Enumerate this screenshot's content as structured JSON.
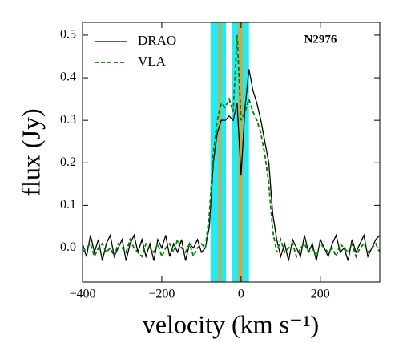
{
  "chart_data": {
    "type": "line",
    "xlabel": "velocity (km s⁻¹)",
    "ylabel": "flux (Jy)",
    "annotation": "N2976",
    "x": [
      -400,
      -390,
      -380,
      -370,
      -360,
      -350,
      -340,
      -330,
      -320,
      -310,
      -300,
      -290,
      -280,
      -270,
      -260,
      -250,
      -240,
      -230,
      -220,
      -210,
      -200,
      -190,
      -180,
      -170,
      -160,
      -150,
      -140,
      -130,
      -120,
      -110,
      -100,
      -90,
      -80,
      -70,
      -60,
      -50,
      -40,
      -30,
      -20,
      -10,
      0,
      10,
      20,
      30,
      40,
      50,
      60,
      70,
      80,
      90,
      100,
      110,
      120,
      130,
      140,
      150,
      160,
      170,
      180,
      190,
      200,
      210,
      220,
      230,
      240,
      250,
      260,
      270,
      280,
      290,
      300,
      310,
      320,
      330,
      340,
      350
    ],
    "series": [
      {
        "name": "DRAO",
        "color": "#000000",
        "dash": "solid",
        "values": [
          0.01,
          -0.02,
          0.03,
          -0.01,
          0.02,
          -0.03,
          0.01,
          0.03,
          -0.02,
          0.0,
          0.02,
          -0.03,
          0.01,
          0.03,
          -0.01,
          0.02,
          -0.02,
          0.01,
          -0.03,
          0.02,
          0.0,
          0.03,
          -0.02,
          0.01,
          -0.01,
          0.02,
          -0.03,
          0.01,
          0.0,
          0.02,
          -0.01,
          0.0,
          0.05,
          0.2,
          0.27,
          0.3,
          0.3,
          0.31,
          0.3,
          0.34,
          0.17,
          0.33,
          0.42,
          0.37,
          0.34,
          0.3,
          0.25,
          0.2,
          0.08,
          0.02,
          -0.02,
          0.01,
          -0.03,
          0.02,
          0.0,
          -0.02,
          0.03,
          -0.01,
          0.01,
          -0.03,
          0.02,
          0.0,
          -0.02,
          0.01,
          0.03,
          -0.01,
          0.0,
          -0.03,
          0.02,
          -0.01,
          0.01,
          0.03,
          -0.02,
          0.0,
          0.02,
          0.03
        ]
      },
      {
        "name": "VLA",
        "color": "#008000",
        "dash": "dashed",
        "values": [
          -0.01,
          0.0,
          0.01,
          -0.02,
          0.0,
          0.01,
          -0.01,
          0.0,
          -0.02,
          0.01,
          0.0,
          -0.01,
          0.02,
          0.0,
          -0.01,
          -0.02,
          0.01,
          0.0,
          -0.01,
          0.01,
          -0.02,
          0.0,
          0.01,
          -0.01,
          0.02,
          0.0,
          -0.01,
          0.01,
          -0.02,
          0.0,
          0.01,
          0.0,
          0.08,
          0.22,
          0.3,
          0.34,
          0.33,
          0.35,
          0.32,
          0.5,
          0.3,
          0.32,
          0.35,
          0.32,
          0.3,
          0.27,
          0.22,
          0.15,
          0.04,
          -0.01,
          0.02,
          -0.01,
          0.0,
          0.01,
          -0.02,
          0.0,
          0.01,
          -0.01,
          0.0,
          -0.02,
          0.01,
          0.0,
          -0.01,
          0.0,
          -0.02,
          0.01,
          0.0,
          -0.01,
          0.01,
          -0.02,
          0.0,
          0.01,
          -0.01,
          0.0,
          0.01,
          -0.01
        ]
      }
    ],
    "spans": [
      {
        "x": [
          -77,
          -38
        ],
        "color": "#00e5ee"
      },
      {
        "x": [
          -24,
          20
        ],
        "color": "#00e5ee"
      },
      {
        "x": [
          -58,
          -50
        ],
        "color": "#d4a640"
      },
      {
        "x": [
          -8,
          4
        ],
        "color": "#d4a640"
      }
    ],
    "xlim": [
      -400,
      350
    ],
    "ylim": [
      -0.08,
      0.53
    ],
    "xticks": [
      {
        "value": -400,
        "label": "−400"
      },
      {
        "value": -200,
        "label": "−200"
      },
      0,
      200
    ],
    "yticks": [
      {
        "value": 0,
        "label": "0.0"
      },
      0.1,
      0.2,
      0.3,
      0.4,
      0.5
    ],
    "legend": "upper left"
  }
}
